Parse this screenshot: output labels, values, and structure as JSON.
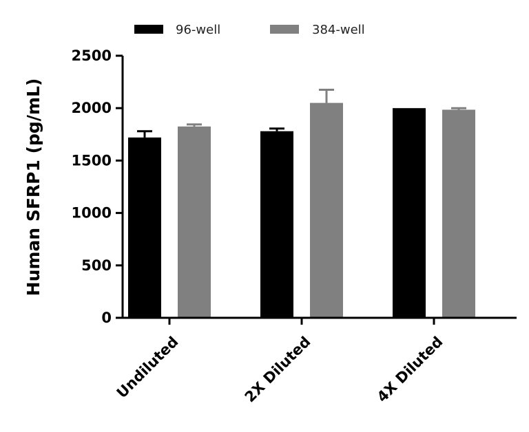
{
  "chart_data": {
    "type": "bar",
    "title": "",
    "xlabel": "",
    "ylabel": "Human SFRP1 (pg/mL)",
    "ylim": [
      0,
      2500
    ],
    "yticks": [
      0,
      500,
      1000,
      1500,
      2000,
      2500
    ],
    "categories": [
      "Undiluted",
      "2X Diluted",
      "4X Diluted"
    ],
    "series": [
      {
        "name": "96-well",
        "color": "#000000",
        "values": [
          1720,
          1780,
          2000
        ],
        "errors": [
          60,
          25,
          0
        ]
      },
      {
        "name": "384-well",
        "color": "#808080",
        "values": [
          1825,
          2050,
          1985
        ],
        "errors": [
          20,
          125,
          15
        ]
      }
    ],
    "legend_position": "top"
  }
}
